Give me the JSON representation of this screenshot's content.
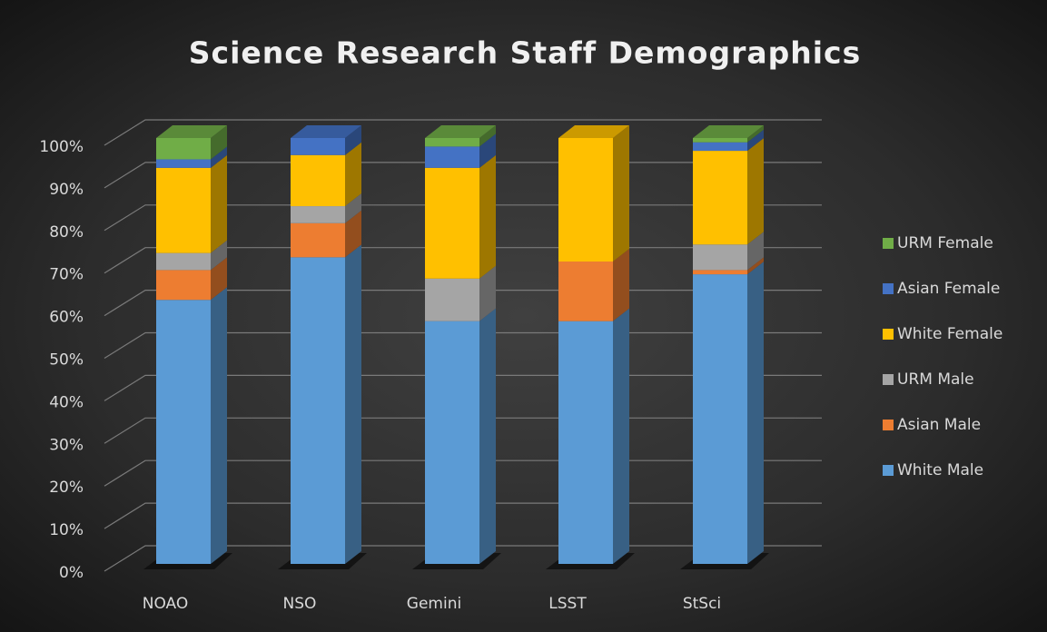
{
  "chart_data": {
    "type": "stacked-bar-3d",
    "title": "Science Research Staff Demographics",
    "categories": [
      "NOAO",
      "NSO",
      "Gemini",
      "LSST",
      "StSci"
    ],
    "series": [
      {
        "name": "White Male",
        "color": "#5b9bd5",
        "values": [
          62,
          72,
          57,
          57,
          68
        ]
      },
      {
        "name": "Asian Male",
        "color": "#ed7d31",
        "values": [
          7,
          8,
          0,
          14,
          1
        ]
      },
      {
        "name": "URM Male",
        "color": "#a5a5a5",
        "values": [
          4,
          4,
          10,
          0,
          6
        ]
      },
      {
        "name": "White Female",
        "color": "#ffc000",
        "values": [
          20,
          12,
          26,
          29,
          22
        ]
      },
      {
        "name": "Asian Female",
        "color": "#4472c4",
        "values": [
          2,
          4,
          5,
          0,
          2
        ]
      },
      {
        "name": "URM Female",
        "color": "#70ad47",
        "values": [
          5,
          0,
          2,
          0,
          1
        ]
      }
    ],
    "ylim": [
      0,
      100
    ],
    "yticks": [
      {
        "value": 0,
        "label": "0%"
      },
      {
        "value": 10,
        "label": "10%"
      },
      {
        "value": 20,
        "label": "20%"
      },
      {
        "value": 30,
        "label": "30%"
      },
      {
        "value": 40,
        "label": "40%"
      },
      {
        "value": 50,
        "label": "50%"
      },
      {
        "value": 60,
        "label": "60%"
      },
      {
        "value": 70,
        "label": "70%"
      },
      {
        "value": 80,
        "label": "80%"
      },
      {
        "value": 90,
        "label": "90%"
      },
      {
        "value": 100,
        "label": "100%"
      }
    ],
    "grid": true,
    "legend": "right"
  }
}
